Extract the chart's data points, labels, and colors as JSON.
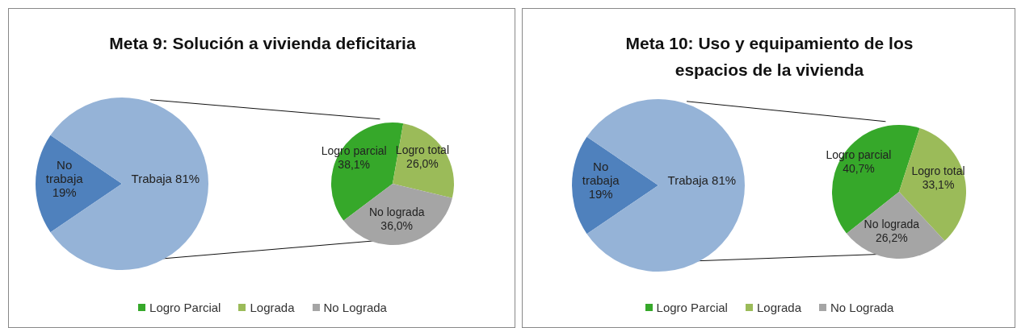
{
  "chart_data": [
    {
      "type": "pie",
      "title": "Meta 9: Solución a vivienda deficitaria",
      "categories": [
        "No trabaja",
        "Trabaja"
      ],
      "values": [
        19,
        81
      ],
      "colors": [
        "#4f81bd",
        "#95b3d7"
      ],
      "value_labels": [
        "19%",
        "81%"
      ]
    },
    {
      "type": "pie",
      "categories": [
        "Logro Parcial",
        "Lograda",
        "No Lograda"
      ],
      "values": [
        38.1,
        26.0,
        36.0
      ],
      "colors": [
        "#36a82a",
        "#9bbb59",
        "#a5a5a5"
      ],
      "value_labels": [
        "Logro parcial 38,1%",
        "Logro total 26,0%",
        "No lograda 36,0%"
      ],
      "legend": "bottom"
    },
    {
      "type": "pie",
      "title": "Meta 10: Uso y equipamiento de los espacios de la vivienda",
      "categories": [
        "No trabaja",
        "Trabaja"
      ],
      "values": [
        19,
        81
      ],
      "colors": [
        "#4f81bd",
        "#95b3d7"
      ],
      "value_labels": [
        "19%",
        "81%"
      ]
    },
    {
      "type": "pie",
      "categories": [
        "Logro Parcial",
        "Lograda",
        "No Lograda"
      ],
      "values": [
        40.7,
        33.1,
        26.2
      ],
      "colors": [
        "#36a82a",
        "#9bbb59",
        "#a5a5a5"
      ],
      "value_labels": [
        "Logro parcial 40,7%",
        "Logro total 33,1%",
        "No lograda 26,2%"
      ],
      "legend": "bottom"
    }
  ]
}
